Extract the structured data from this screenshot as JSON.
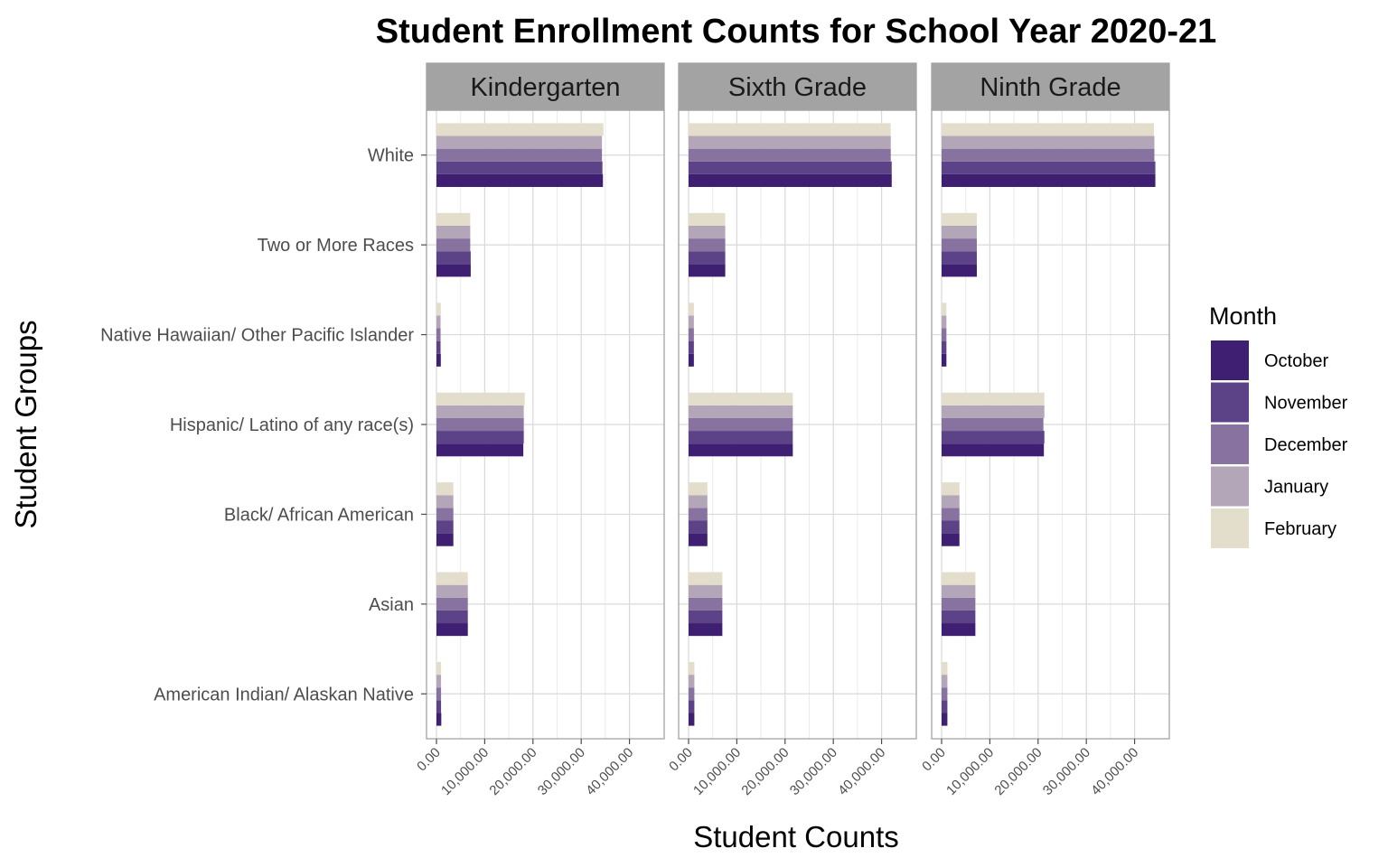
{
  "chart_data": {
    "type": "bar",
    "orientation": "horizontal",
    "title": "Student Enrollment Counts for School Year 2020-21",
    "xlabel": "Student Counts",
    "ylabel": "Student Groups",
    "xlim": [
      0,
      45000
    ],
    "x_ticks": [
      0,
      10000,
      20000,
      30000,
      40000
    ],
    "x_tick_labels": [
      "0.00",
      "10,000.00",
      "20,000.00",
      "30,000.00",
      "40,000.00"
    ],
    "grid": true,
    "legend": {
      "title": "Month",
      "position": "right",
      "entries": [
        "October",
        "November",
        "December",
        "January",
        "February"
      ]
    },
    "colors": {
      "October": "#3f1f71",
      "November": "#5c4387",
      "December": "#88729f",
      "January": "#b3a6b8",
      "February": "#e3ddcb"
    },
    "categories": [
      "White",
      "Two or More Races",
      "Native Hawaiian/ Other Pacific Islander",
      "Hispanic/ Latino of any race(s)",
      "Black/ African American",
      "Asian",
      "American Indian/ Alaskan Native"
    ],
    "panels": [
      {
        "name": "Kindergarten",
        "series": [
          {
            "name": "October",
            "values": [
              34500,
              7100,
              900,
              18000,
              3500,
              6500,
              1000
            ]
          },
          {
            "name": "November",
            "values": [
              34400,
              7100,
              850,
              18100,
              3500,
              6500,
              950
            ]
          },
          {
            "name": "December",
            "values": [
              34300,
              7000,
              850,
              18100,
              3500,
              6500,
              950
            ]
          },
          {
            "name": "January",
            "values": [
              34300,
              7000,
              850,
              18100,
              3500,
              6500,
              950
            ]
          },
          {
            "name": "February",
            "values": [
              34600,
              7000,
              900,
              18300,
              3500,
              6500,
              950
            ]
          }
        ]
      },
      {
        "name": "Sixth Grade",
        "series": [
          {
            "name": "October",
            "values": [
              42100,
              7600,
              1100,
              21600,
              3900,
              7000,
              1200
            ]
          },
          {
            "name": "November",
            "values": [
              42100,
              7600,
              1100,
              21600,
              3900,
              7000,
              1200
            ]
          },
          {
            "name": "December",
            "values": [
              41900,
              7600,
              1100,
              21600,
              3900,
              7000,
              1200
            ]
          },
          {
            "name": "January",
            "values": [
              41900,
              7600,
              1100,
              21600,
              3900,
              7000,
              1200
            ]
          },
          {
            "name": "February",
            "values": [
              41900,
              7600,
              1100,
              21600,
              3900,
              7000,
              1200
            ]
          }
        ]
      },
      {
        "name": "Ninth Grade",
        "series": [
          {
            "name": "October",
            "values": [
              44300,
              7300,
              1000,
              21200,
              3700,
              7000,
              1200
            ]
          },
          {
            "name": "November",
            "values": [
              44300,
              7300,
              1000,
              21300,
              3700,
              7000,
              1200
            ]
          },
          {
            "name": "December",
            "values": [
              44100,
              7300,
              1000,
              21100,
              3700,
              7000,
              1200
            ]
          },
          {
            "name": "January",
            "values": [
              44100,
              7300,
              1000,
              21300,
              3700,
              7000,
              1200
            ]
          },
          {
            "name": "February",
            "values": [
              44000,
              7300,
              1000,
              21300,
              3700,
              7000,
              1200
            ]
          }
        ]
      }
    ]
  }
}
